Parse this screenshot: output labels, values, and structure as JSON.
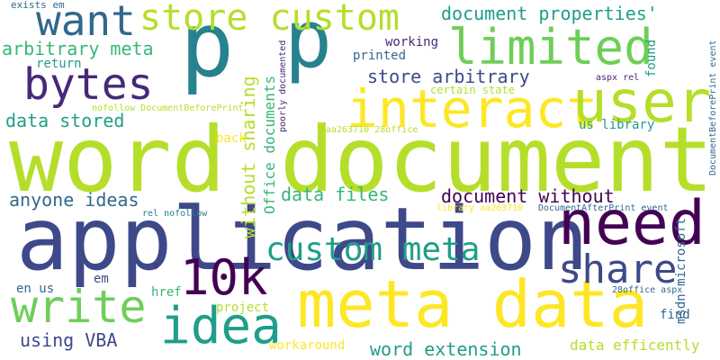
{
  "word_cloud": {
    "background": "#ffffff",
    "palette": [
      "#440154",
      "#482878",
      "#3e4989",
      "#31688e",
      "#26828e",
      "#1f9e89",
      "#35b779",
      "#6ece58",
      "#b5de2b",
      "#fde725"
    ],
    "words": [
      {
        "text": "word document",
        "color": "#b5de2b"
      },
      {
        "text": "application",
        "color": "#3e4989"
      },
      {
        "text": "meta data",
        "color": "#fde725"
      },
      {
        "text": "p",
        "color": "#26828e"
      },
      {
        "text": "p",
        "color": "#26828e"
      },
      {
        "text": "interact",
        "color": "#fde725"
      },
      {
        "text": "need",
        "color": "#440154"
      },
      {
        "text": "user",
        "color": "#b5de2b"
      },
      {
        "text": "limited",
        "color": "#6ece58"
      },
      {
        "text": "store custom",
        "color": "#b5de2b"
      },
      {
        "text": "want",
        "color": "#31688e"
      },
      {
        "text": "bytes",
        "color": "#482878"
      },
      {
        "text": "idea",
        "color": "#1f9e89"
      },
      {
        "text": "write",
        "color": "#6ece58"
      },
      {
        "text": "10k",
        "color": "#440154"
      },
      {
        "text": "share",
        "color": "#3e4989"
      },
      {
        "text": "custom meta",
        "color": "#1f9e89"
      },
      {
        "text": "document properties'",
        "color": "#1f9e89"
      },
      {
        "text": "store arbitrary",
        "color": "#3e4989"
      },
      {
        "text": "arbitrary meta",
        "color": "#35b779"
      },
      {
        "text": "data stored",
        "color": "#1f9e89"
      },
      {
        "text": "document without",
        "color": "#440154"
      },
      {
        "text": "anyone ideas",
        "color": "#31688e"
      },
      {
        "text": "data files",
        "color": "#35b779"
      },
      {
        "text": "without sharing",
        "color": "#b5de2b"
      },
      {
        "text": "Office documents",
        "color": "#35b779"
      },
      {
        "text": "using VBA",
        "color": "#3e4989"
      },
      {
        "text": "word extension",
        "color": "#1f9e89"
      },
      {
        "text": "data efficently",
        "color": "#b5de2b"
      },
      {
        "text": "workaround",
        "color": "#fde725"
      },
      {
        "text": "msdn microsoft",
        "color": "#31688e"
      },
      {
        "text": "exists em",
        "color": "#31688e"
      },
      {
        "text": "return",
        "color": "#1f9e89"
      },
      {
        "text": "printed",
        "color": "#31688e"
      },
      {
        "text": "working",
        "color": "#482878"
      },
      {
        "text": "found",
        "color": "#1f9e89"
      },
      {
        "text": "certain state",
        "color": "#b5de2b"
      },
      {
        "text": "aspx rel",
        "color": "#482878"
      },
      {
        "text": "us library",
        "color": "#1f9e89"
      },
      {
        "text": "nofollow DocumentBeforePrint",
        "color": "#b5de2b"
      },
      {
        "text": "aa263710 28office",
        "color": "#b5de2b"
      },
      {
        "text": "poorly documented",
        "color": "#482878"
      },
      {
        "text": "DocumentBeforePrint event",
        "color": "#31688e"
      },
      {
        "text": "back",
        "color": "#fde725"
      },
      {
        "text": "rel nofollow",
        "color": "#26828e"
      },
      {
        "text": "library aa263710",
        "color": "#fde725"
      },
      {
        "text": "DocumentAfterPrint event",
        "color": "#31688e"
      },
      {
        "text": "en us",
        "color": "#31688e"
      },
      {
        "text": "em",
        "color": "#3e4989"
      },
      {
        "text": "href",
        "color": "#35b779"
      },
      {
        "text": "project",
        "color": "#b5de2b"
      },
      {
        "text": "p",
        "color": "#482878"
      },
      {
        "text": "28office aspx",
        "color": "#31688e"
      },
      {
        "text": "find",
        "color": "#31688e"
      }
    ]
  }
}
